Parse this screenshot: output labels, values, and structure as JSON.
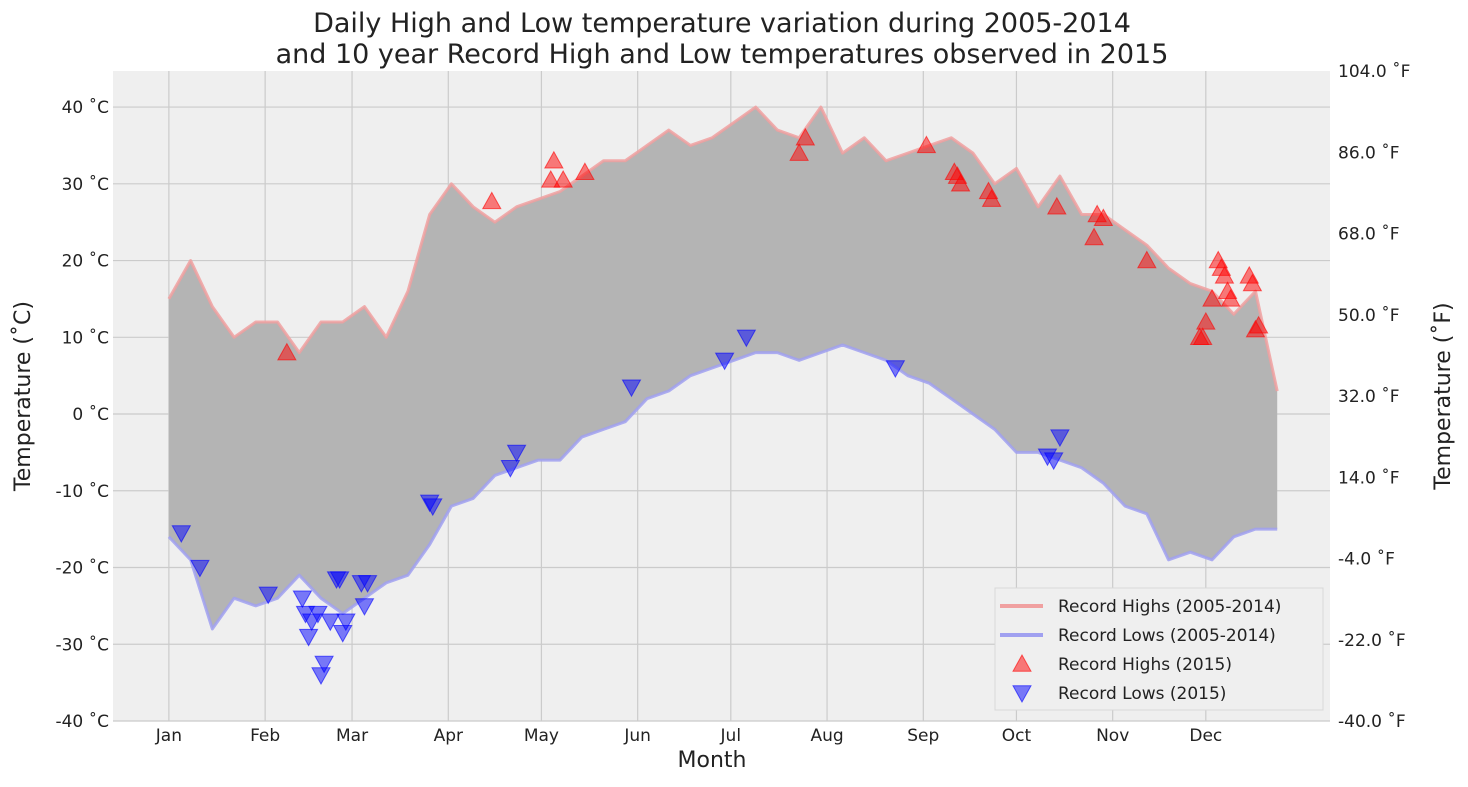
{
  "chart_data": {
    "type": "line",
    "title": [
      "Daily High and Low temperature variation during 2005-2014",
      "and 10 year Record High and Low temperatures observed in 2015"
    ],
    "xlabel": "Month",
    "ylabel": "Temperature (˚C)",
    "y2label": "Temperature (˚F)",
    "grid": true,
    "legend": "lower right",
    "fill_color": "#b4b4b4",
    "xlim": [
      -18,
      374
    ],
    "ylim": [
      -40,
      44.7
    ],
    "y2lim": [
      -40,
      104
    ],
    "xticks": [
      {
        "value": 0,
        "label": "Jan"
      },
      {
        "value": 31,
        "label": "Feb"
      },
      {
        "value": 59,
        "label": "Mar"
      },
      {
        "value": 90,
        "label": "Apr"
      },
      {
        "value": 120,
        "label": "May"
      },
      {
        "value": 151,
        "label": "Jun"
      },
      {
        "value": 181,
        "label": "Jul"
      },
      {
        "value": 212,
        "label": "Aug"
      },
      {
        "value": 243,
        "label": "Sep"
      },
      {
        "value": 273,
        "label": "Oct"
      },
      {
        "value": 304,
        "label": "Nov"
      },
      {
        "value": 334,
        "label": "Dec"
      }
    ],
    "yticks": [
      {
        "value": -40,
        "label": "-40 ˚C"
      },
      {
        "value": -30,
        "label": "-30 ˚C"
      },
      {
        "value": -20,
        "label": "-20 ˚C"
      },
      {
        "value": -10,
        "label": "-10 ˚C"
      },
      {
        "value": 0,
        "label": "0 ˚C"
      },
      {
        "value": 10,
        "label": "10 ˚C"
      },
      {
        "value": 20,
        "label": "20 ˚C"
      },
      {
        "value": 30,
        "label": "30 ˚C"
      },
      {
        "value": 40,
        "label": "40 ˚C"
      }
    ],
    "y2ticks": [
      {
        "value": -40,
        "label": "-40.0 ˚F"
      },
      {
        "value": -22,
        "label": "-22.0 ˚F"
      },
      {
        "value": -4,
        "label": "-4.0 ˚F"
      },
      {
        "value": 14,
        "label": "14.0 ˚F"
      },
      {
        "value": 32,
        "label": "32.0 ˚F"
      },
      {
        "value": 50,
        "label": "50.0 ˚F"
      },
      {
        "value": 68,
        "label": "68.0 ˚F"
      },
      {
        "value": 86,
        "label": "86.0 ˚F"
      },
      {
        "value": 104,
        "label": "104.0 ˚F"
      }
    ],
    "x": [
      0,
      7,
      14,
      21,
      28,
      35,
      42,
      49,
      56,
      63,
      70,
      77,
      84,
      91,
      98,
      105,
      112,
      119,
      126,
      133,
      140,
      147,
      154,
      161,
      168,
      175,
      182,
      189,
      196,
      203,
      210,
      217,
      224,
      231,
      238,
      245,
      252,
      259,
      266,
      273,
      280,
      287,
      294,
      301,
      308,
      315,
      322,
      329,
      336,
      343,
      350,
      357
    ],
    "series": [
      {
        "name": "Record Highs (2005-2014)",
        "color": "#f0a0a0",
        "values": [
          15,
          20,
          14,
          10,
          12,
          12,
          8,
          12,
          12,
          14,
          10,
          16,
          26,
          30,
          27,
          25,
          27,
          28,
          29,
          31,
          33,
          33,
          35,
          37,
          35,
          36,
          38,
          40,
          37,
          36,
          40,
          34,
          36,
          33,
          34,
          35,
          36,
          34,
          30,
          32,
          27,
          31,
          26,
          26,
          24,
          22,
          19,
          17,
          16,
          13,
          16,
          3
        ]
      },
      {
        "name": "Record Lows (2005-2014)",
        "color": "#a0a0f0",
        "values": [
          -16,
          -19,
          -28,
          -24,
          -25,
          -24,
          -21,
          -24,
          -26,
          -24,
          -22,
          -21,
          -17,
          -12,
          -11,
          -8,
          -7,
          -6,
          -6,
          -3,
          -2,
          -1,
          2,
          3,
          5,
          6,
          7,
          8,
          8,
          7,
          8,
          9,
          8,
          7,
          5,
          4,
          2,
          0,
          -2,
          -5,
          -5,
          -6,
          -7,
          -9,
          -12,
          -13,
          -19,
          -18,
          -19,
          -16,
          -15,
          -15
        ]
      }
    ],
    "scatter_series": [
      {
        "name": "Record Highs (2015)",
        "color": "#ff0000",
        "marker": "up",
        "x": [
          38,
          104,
          124,
          123,
          127,
          134,
          203,
          205,
          244,
          253,
          254,
          255,
          264,
          265,
          286,
          298,
          299,
          301,
          315,
          332,
          333,
          334,
          336,
          338,
          339,
          340,
          341,
          342,
          348,
          349,
          350,
          351
        ],
        "values": [
          8,
          27.7,
          33,
          30.5,
          30.5,
          31.5,
          34,
          36,
          35,
          31.5,
          31,
          30,
          29,
          28,
          27,
          23,
          26,
          25.5,
          20,
          10,
          10,
          12,
          15,
          20,
          19,
          18,
          16,
          15,
          18,
          17,
          11,
          11.5
        ]
      },
      {
        "name": "Record Lows (2015)",
        "color": "#0000ff",
        "marker": "down",
        "x": [
          4,
          10,
          32,
          43,
          44,
          45,
          46,
          48,
          50,
          49,
          52,
          54,
          55,
          56,
          57,
          62,
          63,
          64,
          84,
          85,
          110,
          112,
          149,
          179,
          186,
          234,
          283,
          285,
          287
        ],
        "values": [
          -15.5,
          -20,
          -23.5,
          -24,
          -26,
          -29,
          -27,
          -26,
          -32.5,
          -34,
          -27,
          -21.5,
          -21.5,
          -28.5,
          -27,
          -22,
          -25,
          -22,
          -11.5,
          -12,
          -7,
          -5,
          3.5,
          7,
          10,
          6,
          -5.5,
          -6,
          -3
        ]
      }
    ]
  }
}
